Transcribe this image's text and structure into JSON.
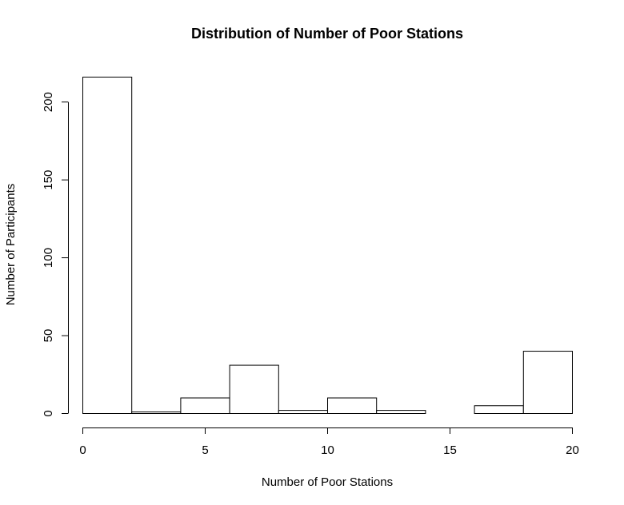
{
  "chart_data": {
    "type": "bar",
    "title": "Distribution of Number of Poor Stations",
    "xlabel": "Number of Poor Stations",
    "ylabel": "Number of Participants",
    "bins": [
      {
        "from": 0,
        "to": 2,
        "count": 216
      },
      {
        "from": 2,
        "to": 4,
        "count": 1
      },
      {
        "from": 4,
        "to": 6,
        "count": 10
      },
      {
        "from": 6,
        "to": 8,
        "count": 31
      },
      {
        "from": 8,
        "to": 10,
        "count": 2
      },
      {
        "from": 10,
        "to": 12,
        "count": 10
      },
      {
        "from": 12,
        "to": 14,
        "count": 2
      },
      {
        "from": 14,
        "to": 16,
        "count": 0
      },
      {
        "from": 16,
        "to": 18,
        "count": 5
      },
      {
        "from": 18,
        "to": 20,
        "count": 40
      }
    ],
    "xlim": [
      0,
      20
    ],
    "ylim": [
      0,
      216
    ],
    "x_ticks": [
      0,
      5,
      10,
      15,
      20
    ],
    "y_ticks": [
      0,
      50,
      100,
      150,
      200
    ],
    "x_tick_labels": [
      "0",
      "5",
      "10",
      "15",
      "20"
    ],
    "y_tick_labels": [
      "0",
      "50",
      "100",
      "150",
      "200"
    ],
    "grid": false,
    "legend": "none",
    "bar_fill": "#ffffff",
    "bar_stroke": "#000000"
  }
}
